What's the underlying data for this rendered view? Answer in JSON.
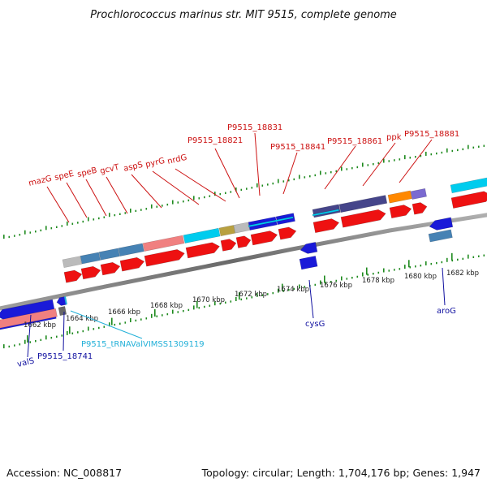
{
  "title": "Prochlorococcus marinus str. MIT 9515, complete genome",
  "footer": {
    "accession": "Accession: NC_008817",
    "summary": "Topology: circular; Length: 1,704,176 bp; Genes: 1,947"
  },
  "tick_labels": [
    "1662 kbp",
    "1664 kbp",
    "1666 kbp",
    "1668 kbp",
    "1670 kbp",
    "1672 kbp",
    "1674 kbp",
    "1676 kbp",
    "1678 kbp",
    "1680 kbp",
    "1682 kbp"
  ],
  "upper_labels": [
    "mazG",
    "speE",
    "speB",
    "gcvT",
    "aspS",
    "pyrG",
    "nrdG",
    "P9515_18821",
    "P9515_18831",
    "P9515_18841",
    "P9515_18861",
    "ppk",
    "P9515_18881"
  ],
  "lower_labels": [
    "valS",
    "P9515_18741",
    "P9515_tRNAValVIMSS1309119",
    "cysG",
    "aroG"
  ],
  "colors": {
    "forward_cds": "#ee1111",
    "reverse_cds": "#1a1ad8",
    "light_red": "#f08080",
    "steel_blue": "#4682b4",
    "light_blue": "#00ccee",
    "gray": "#bbbbbb",
    "dark_gray": "#666666",
    "slate_purple": "#45458a",
    "lavender": "#7a6ad0",
    "orange": "#ff8800",
    "olive": "#b8a040",
    "cyan_trna": "#22b0d8",
    "backbone": "#888888",
    "tick": "#1e8a1e"
  }
}
